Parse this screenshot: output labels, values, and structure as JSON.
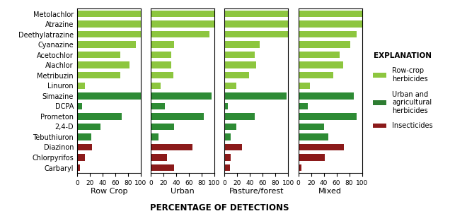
{
  "chart_data": [
    {
      "type": "bar",
      "orientation": "horizontal",
      "xlabel": "Row Crop",
      "categories": [
        "Metolachlor",
        "Atrazine",
        "Deethylatrazine",
        "Cyanazine",
        "Acetochlor",
        "Alachlor",
        "Metribuzin",
        "Linuron",
        "Simazine",
        "DCPA",
        "Prometon",
        "2,4-D",
        "Tebuthiuron",
        "Diazinon",
        "Chlorpyrifos",
        "Carbaryl"
      ],
      "values": [
        100,
        100,
        100,
        92,
        68,
        83,
        68,
        12,
        100,
        8,
        70,
        37,
        22,
        23,
        12,
        5
      ],
      "colors": [
        "#8dc63f",
        "#8dc63f",
        "#8dc63f",
        "#8dc63f",
        "#8dc63f",
        "#8dc63f",
        "#8dc63f",
        "#8dc63f",
        "#2e8b35",
        "#2e8b35",
        "#2e8b35",
        "#2e8b35",
        "#2e8b35",
        "#8b1a1a",
        "#8b1a1a",
        "#8b1a1a"
      ],
      "xlim": [
        0,
        100
      ],
      "xticks": [
        0,
        20,
        40,
        60,
        80,
        100
      ]
    },
    {
      "type": "bar",
      "orientation": "horizontal",
      "xlabel": "Urban",
      "tick_labels": "x",
      "categories": [
        "Metolachlor",
        "Atrazine",
        "Deethylatrazine",
        "Cyanazine",
        "Acetochlor",
        "Alachlor",
        "Metribuzin",
        "Linuron",
        "Simazine",
        "DCPA",
        "Prometon",
        "2,4-D",
        "Tebuthiuron",
        "Diazinon",
        "Chlorpyrifos",
        "Carbaryl"
      ],
      "values": [
        100,
        100,
        92,
        37,
        32,
        32,
        35,
        15,
        95,
        22,
        83,
        37,
        12,
        65,
        25,
        37
      ],
      "colors": [
        "#8dc63f",
        "#8dc63f",
        "#8dc63f",
        "#8dc63f",
        "#8dc63f",
        "#8dc63f",
        "#8dc63f",
        "#8dc63f",
        "#2e8b35",
        "#2e8b35",
        "#2e8b35",
        "#2e8b35",
        "#2e8b35",
        "#8b1a1a",
        "#8b1a1a",
        "#8b1a1a"
      ],
      "xlim": [
        0,
        100
      ],
      "xticks": [
        0,
        20,
        40,
        60,
        80,
        100
      ]
    },
    {
      "type": "bar",
      "orientation": "horizontal",
      "xlabel": "Pasture/forest",
      "tick_labels": "x",
      "categories": [
        "Metolachlor",
        "Atrazine",
        "Deethylatrazine",
        "Cyanazine",
        "Acetochlor",
        "Alachlor",
        "Metribuzin",
        "Linuron",
        "Simazine",
        "DCPA",
        "Prometon",
        "2,4-D",
        "Tebuthiuron",
        "Diazinon",
        "Chlorpyrifos",
        "Carbaryl"
      ],
      "values": [
        100,
        100,
        100,
        55,
        47,
        50,
        38,
        18,
        97,
        5,
        47,
        18,
        10,
        27,
        10,
        8
      ],
      "colors": [
        "#8dc63f",
        "#8dc63f",
        "#8dc63f",
        "#8dc63f",
        "#8dc63f",
        "#8dc63f",
        "#8dc63f",
        "#8dc63f",
        "#2e8b35",
        "#2e8b35",
        "#2e8b35",
        "#2e8b35",
        "#2e8b35",
        "#8b1a1a",
        "#8b1a1a",
        "#8b1a1a"
      ],
      "xlim": [
        0,
        100
      ],
      "xticks": [
        0,
        20,
        40,
        60,
        80,
        100
      ]
    },
    {
      "type": "bar",
      "orientation": "horizontal",
      "xlabel": "Mixed",
      "tick_labels": "x",
      "categories": [
        "Metolachlor",
        "Atrazine",
        "Deethylatrazine",
        "Cyanazine",
        "Acetochlor",
        "Alachlor",
        "Metribuzin",
        "Linuron",
        "Simazine",
        "DCPA",
        "Prometon",
        "2,4-D",
        "Tebuthiuron",
        "Diazinon",
        "Chlorpyrifos",
        "Carbaryl"
      ],
      "values": [
        100,
        100,
        92,
        82,
        65,
        70,
        55,
        18,
        87,
        15,
        92,
        40,
        47,
        72,
        42,
        5
      ],
      "colors": [
        "#8dc63f",
        "#8dc63f",
        "#8dc63f",
        "#8dc63f",
        "#8dc63f",
        "#8dc63f",
        "#8dc63f",
        "#8dc63f",
        "#2e8b35",
        "#2e8b35",
        "#2e8b35",
        "#2e8b35",
        "#2e8b35",
        "#8b1a1a",
        "#8b1a1a",
        "#8b1a1a"
      ],
      "xlim": [
        0,
        100
      ],
      "xticks": [
        0,
        20,
        40,
        60,
        80,
        100
      ]
    }
  ],
  "xlabel": "PERCENTAGE OF DETECTIONS",
  "legend_title": "EXPLANATION",
  "legend_entries": [
    {
      "name": "Row-crop\nherbicides",
      "color": "#8dc63f"
    },
    {
      "name": "Urban and\nagricultural\nherbicides",
      "color": "#2e7d32"
    },
    {
      "name": "Insecticides",
      "color": "#8b1a1a"
    }
  ]
}
